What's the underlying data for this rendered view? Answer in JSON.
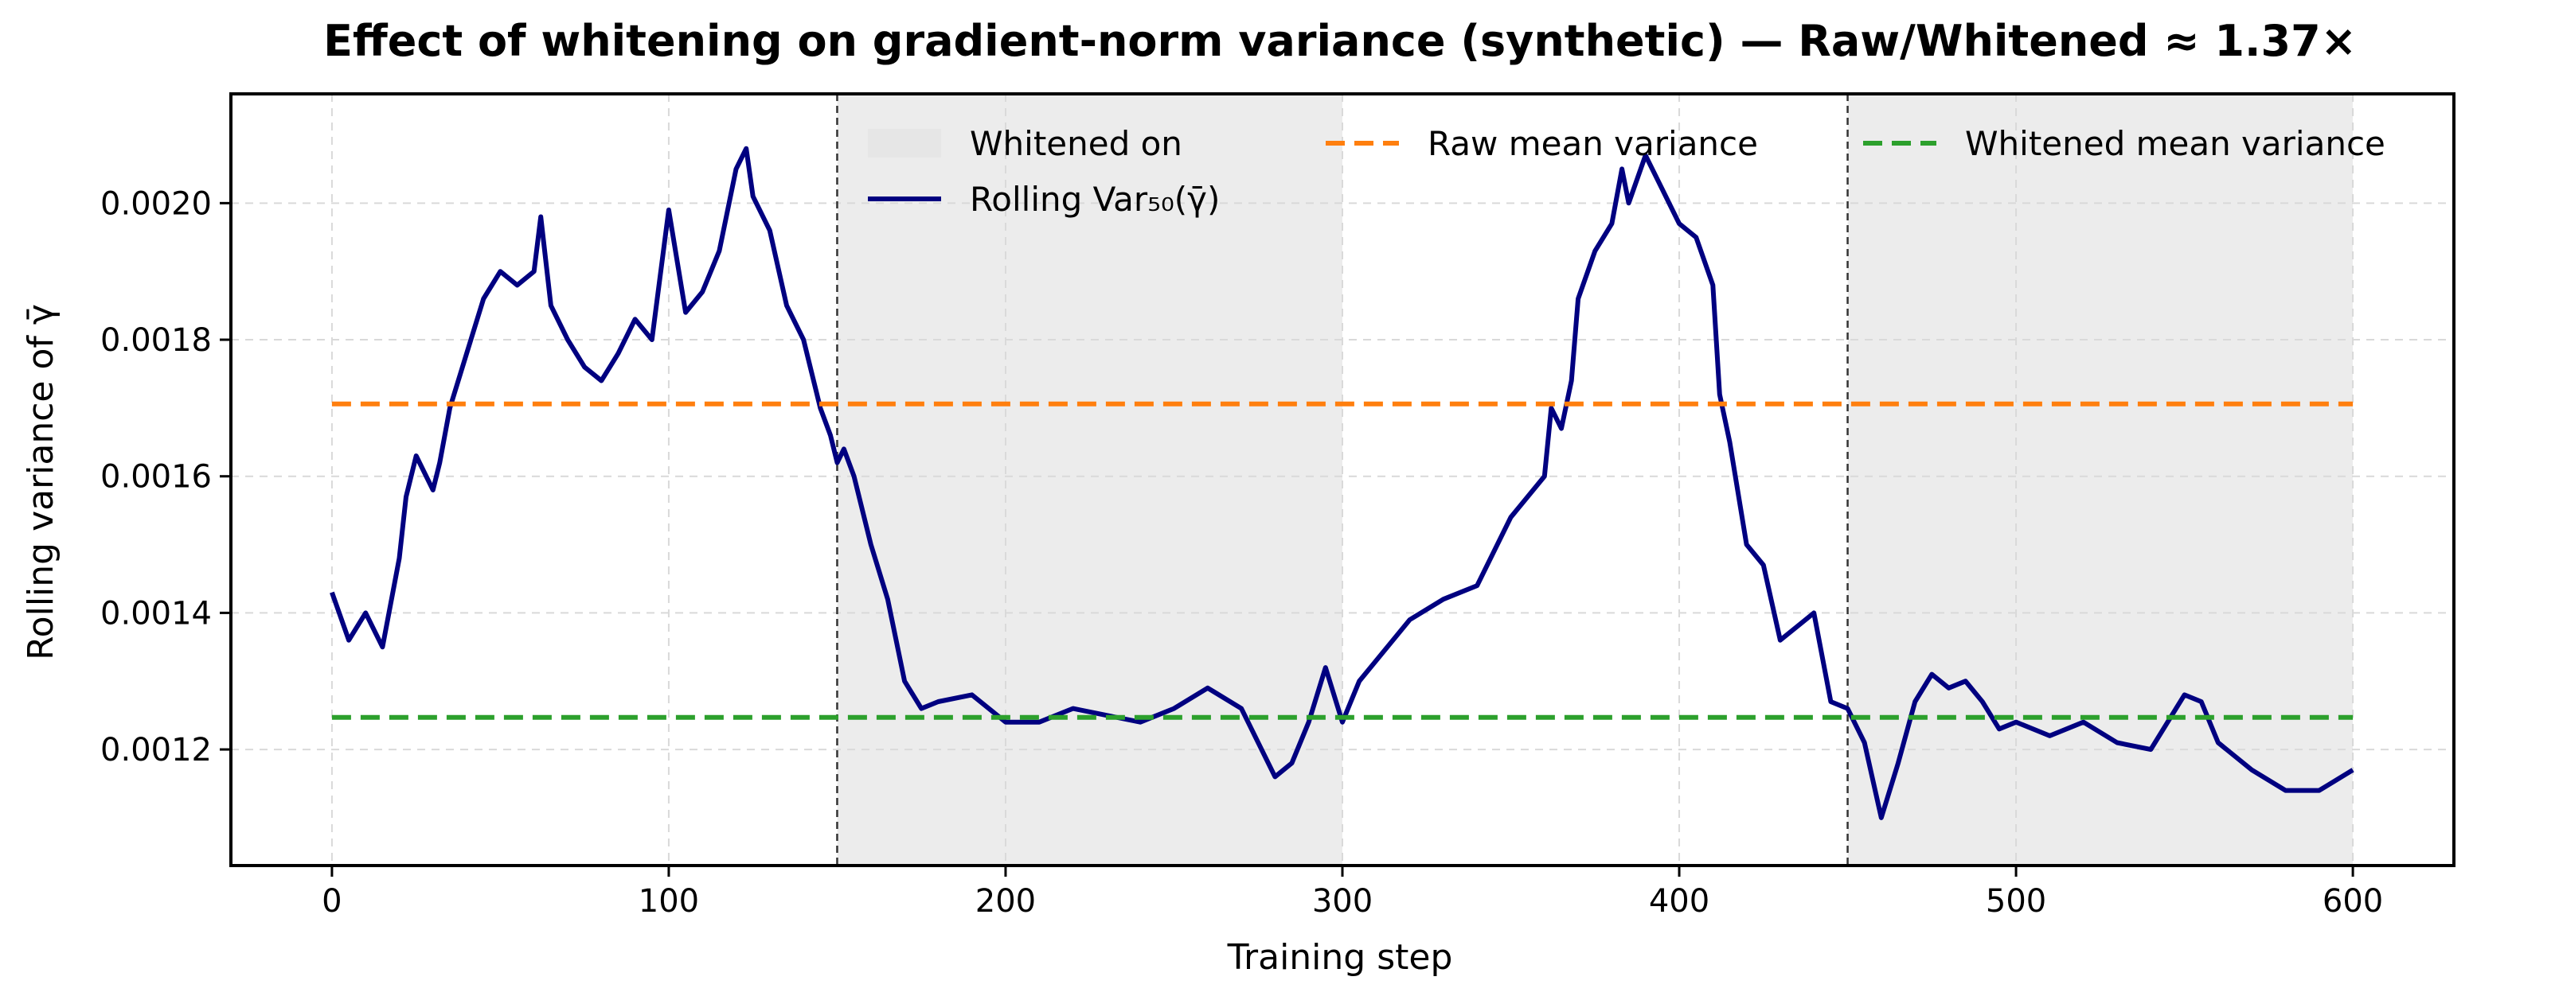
{
  "chart_data": {
    "type": "line",
    "title": "Effect of whitening on gradient-norm variance (synthetic)  —  Raw/Whitened ≈ 1.37×",
    "xlabel": "Training step",
    "ylabel": "Rolling variance of γ̄",
    "xlim": [
      -30,
      630
    ],
    "ylim": [
      0.00103,
      0.00216
    ],
    "x_ticks": [
      0,
      100,
      200,
      300,
      400,
      500,
      600
    ],
    "x_tick_labels": [
      "0",
      "100",
      "200",
      "300",
      "400",
      "500",
      "600"
    ],
    "y_ticks": [
      0.0012,
      0.0014,
      0.0016,
      0.0018,
      0.002
    ],
    "y_tick_labels": [
      "0.0012",
      "0.0014",
      "0.0016",
      "0.0018",
      "0.0020"
    ],
    "grid": true,
    "legend_placement": "top",
    "whitened_regions": [
      [
        150,
        300
      ],
      [
        450,
        600
      ]
    ],
    "regime_boundaries": [
      150,
      450
    ],
    "series": [
      {
        "name": "Rolling Var₅₀(γ̄)",
        "color": "#000080",
        "style": "solid",
        "x": [
          0,
          5,
          10,
          15,
          20,
          22,
          25,
          30,
          32,
          35,
          40,
          45,
          50,
          55,
          60,
          62,
          65,
          70,
          75,
          80,
          85,
          90,
          95,
          100,
          105,
          110,
          115,
          120,
          123,
          125,
          130,
          135,
          140,
          145,
          148,
          150,
          152,
          155,
          160,
          165,
          170,
          175,
          180,
          190,
          200,
          210,
          220,
          230,
          240,
          250,
          260,
          270,
          280,
          285,
          290,
          295,
          300,
          305,
          310,
          320,
          330,
          340,
          350,
          360,
          362,
          365,
          368,
          370,
          375,
          380,
          383,
          385,
          390,
          395,
          400,
          405,
          410,
          412,
          415,
          420,
          425,
          430,
          435,
          440,
          445,
          450,
          453,
          455,
          460,
          465,
          470,
          475,
          480,
          485,
          490,
          495,
          500,
          510,
          520,
          530,
          540,
          550,
          555,
          560,
          570,
          580,
          590,
          600
        ],
        "y": [
          0.00143,
          0.00136,
          0.0014,
          0.00135,
          0.00148,
          0.00157,
          0.00163,
          0.00158,
          0.00162,
          0.0017,
          0.00178,
          0.00186,
          0.0019,
          0.00188,
          0.0019,
          0.00198,
          0.00185,
          0.0018,
          0.00176,
          0.00174,
          0.00178,
          0.00183,
          0.0018,
          0.00199,
          0.00184,
          0.00187,
          0.00193,
          0.00205,
          0.00208,
          0.00201,
          0.00196,
          0.00185,
          0.0018,
          0.0017,
          0.00166,
          0.00162,
          0.00164,
          0.0016,
          0.0015,
          0.00142,
          0.0013,
          0.00126,
          0.00127,
          0.00128,
          0.00124,
          0.00124,
          0.00126,
          0.00125,
          0.00124,
          0.00126,
          0.00129,
          0.00126,
          0.00116,
          0.00118,
          0.00124,
          0.00132,
          0.00124,
          0.0013,
          0.00133,
          0.00139,
          0.00142,
          0.00144,
          0.00154,
          0.0016,
          0.0017,
          0.00167,
          0.00174,
          0.00186,
          0.00193,
          0.00197,
          0.00205,
          0.002,
          0.00207,
          0.00202,
          0.00197,
          0.00195,
          0.00188,
          0.00172,
          0.00165,
          0.0015,
          0.00147,
          0.00136,
          0.00138,
          0.0014,
          0.00127,
          0.00126,
          0.00123,
          0.00121,
          0.0011,
          0.00118,
          0.00127,
          0.00131,
          0.00129,
          0.0013,
          0.00127,
          0.00123,
          0.00124,
          0.00122,
          0.00124,
          0.00121,
          0.0012,
          0.00128,
          0.00127,
          0.00121,
          0.00117,
          0.00114,
          0.00114,
          0.00117
        ]
      },
      {
        "name": "Raw mean variance",
        "color": "#ff7f0e",
        "style": "dashed",
        "x": [
          0,
          600
        ],
        "y": [
          0.001706,
          0.001706
        ]
      },
      {
        "name": "Whitened mean variance",
        "color": "#2ca02c",
        "style": "dashed",
        "x": [
          0,
          600
        ],
        "y": [
          0.001247,
          0.001247
        ]
      }
    ],
    "legend": [
      {
        "label": "Whitened on",
        "kind": "patch",
        "color": "#e6e6e6"
      },
      {
        "label": "Raw mean variance",
        "kind": "dashed",
        "color": "#ff7f0e"
      },
      {
        "label": "Whitened mean variance",
        "kind": "dashed",
        "color": "#2ca02c"
      },
      {
        "label": "Rolling Var₅₀(γ̄)",
        "kind": "line",
        "color": "#000080"
      }
    ]
  }
}
